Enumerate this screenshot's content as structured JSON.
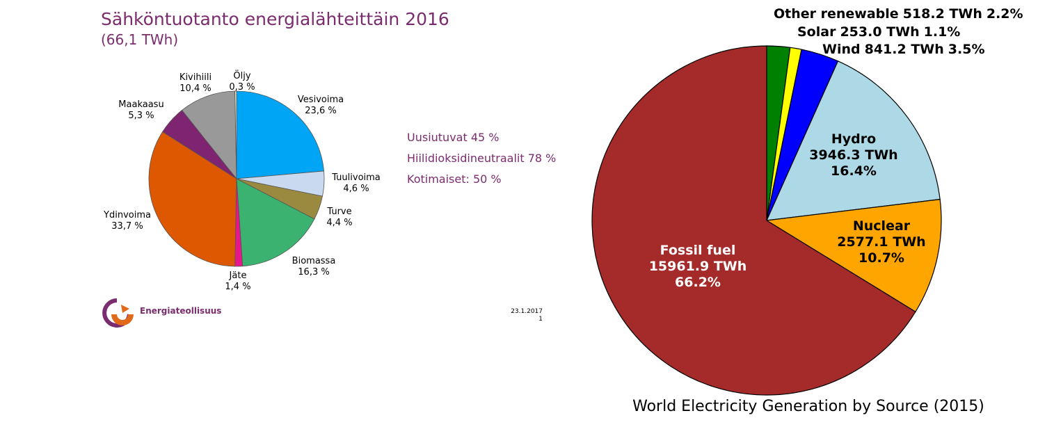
{
  "finland": {
    "title": "Sähköntuotanto energialähteittäin 2016",
    "subtitle": "(66,1 TWh)",
    "stats": [
      "Uusiutuvat 45 %",
      "Hiilidioksidineutraalit  78 %",
      "Kotimaiset:  50 %"
    ],
    "date": "23.1.2017",
    "page_number": "1",
    "logo_text": "Energiateollisuus"
  },
  "world": {
    "title": "World Electricity Generation by Source (2015)"
  },
  "chart_data": [
    {
      "type": "pie",
      "title": "Sähköntuotanto energialähteittäin 2016",
      "subtitle": "(66,1 TWh)",
      "slices": [
        {
          "name": "Vesivoima",
          "value": 23.6,
          "label": "23,6 %",
          "color": "#00a6f5"
        },
        {
          "name": "Tuulivoima",
          "value": 4.6,
          "label": "4,6 %",
          "color": "#c9d9f0"
        },
        {
          "name": "Turve",
          "value": 4.4,
          "label": "4,4 %",
          "color": "#998a3f"
        },
        {
          "name": "Biomassa",
          "value": 16.3,
          "label": "16,3 %",
          "color": "#3bb26f"
        },
        {
          "name": "Jäte",
          "value": 1.4,
          "label": "1,4 %",
          "color": "#e8168b"
        },
        {
          "name": "Ydinvoima",
          "value": 33.7,
          "label": "33,7 %",
          "color": "#dd5800"
        },
        {
          "name": "Maakaasu",
          "value": 5.3,
          "label": "5,3 %",
          "color": "#7f2470"
        },
        {
          "name": "Kivihiili",
          "value": 10.4,
          "label": "10,4 %",
          "color": "#999999"
        },
        {
          "name": "Öljy",
          "value": 0.3,
          "label": "0,3 %",
          "color": "#f2efd2"
        }
      ]
    },
    {
      "type": "pie",
      "title": "World Electricity Generation by Source (2015)",
      "slices": [
        {
          "name": "Other renewable",
          "value": 518.2,
          "label": "518.2 TWh",
          "percent": "2.2%",
          "color": "#008000"
        },
        {
          "name": "Solar",
          "value": 253.0,
          "label": "253.0 TWh",
          "percent": "1.1%",
          "color": "#ffff00"
        },
        {
          "name": "Wind",
          "value": 841.2,
          "label": "841.2 TWh",
          "percent": "3.5%",
          "color": "#0000ff"
        },
        {
          "name": "Hydro",
          "value": 3946.3,
          "label": "3946.3 TWh",
          "percent": "16.4%",
          "color": "#add8e6"
        },
        {
          "name": "Nuclear",
          "value": 2577.1,
          "label": "2577.1 TWh",
          "percent": "10.7%",
          "color": "#ffa500"
        },
        {
          "name": "Fossil fuel",
          "value": 15961.9,
          "label": "15961.9 TWh",
          "percent": "66.2%",
          "color": "#a52a2a"
        }
      ]
    }
  ]
}
